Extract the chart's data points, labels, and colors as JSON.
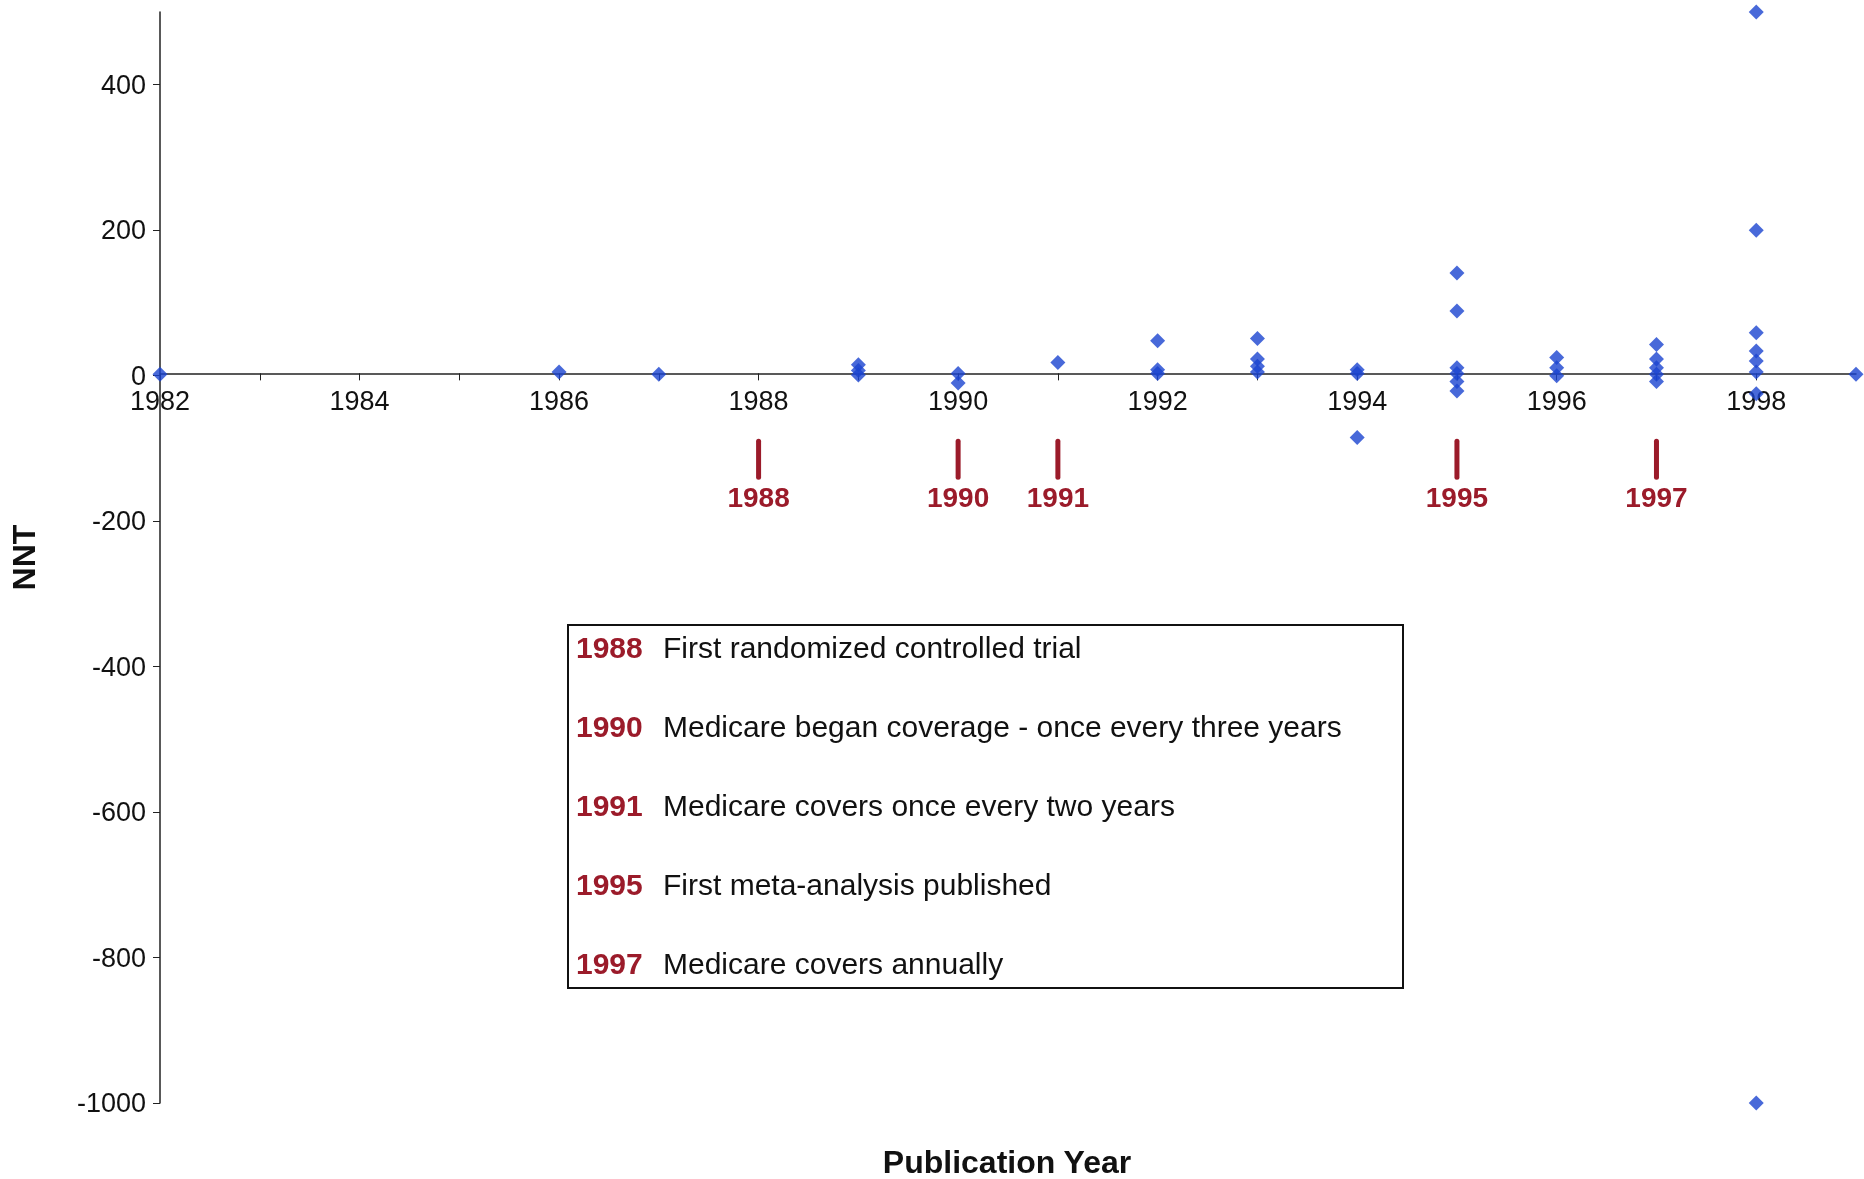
{
  "chart_data": {
    "type": "scatter",
    "xlabel": "Publication Year",
    "ylabel": "NNT",
    "x": [
      1982,
      1986,
      1987,
      1989,
      1989,
      1989,
      1990,
      1990,
      1991,
      1992,
      1992,
      1992,
      1993,
      1993,
      1993,
      1993,
      1994,
      1994,
      1994,
      1995,
      1995,
      1995,
      1995,
      1995,
      1995,
      1996,
      1996,
      1996,
      1997,
      1997,
      1997,
      1997,
      1997,
      1998,
      1998,
      1998,
      1998,
      1998,
      1998,
      1998,
      1998,
      1999
    ],
    "series": [
      {
        "color": "#1a44d0",
        "values": [
          2,
          5,
          2,
          15,
          7,
          1,
          3,
          -10,
          18,
          48,
          8,
          3,
          51,
          23,
          13,
          5,
          8,
          3,
          -85,
          141,
          89,
          11,
          3,
          -8,
          -21,
          25,
          11,
          0,
          43,
          23,
          11,
          2,
          -8,
          500,
          200,
          59,
          34,
          20,
          5,
          -25,
          -1000,
          2
        ]
      }
    ],
    "marker": "diamond",
    "xlim": [
      1982,
      1999
    ],
    "xticks": [
      1982,
      {
        "value": 1983,
        "label": null
      },
      1984,
      {
        "value": 1985,
        "label": null
      },
      1986,
      {
        "value": 1987,
        "label": null
      },
      1988,
      {
        "value": 1989,
        "label": null
      },
      1990,
      {
        "value": 1991,
        "label": null
      },
      1992,
      {
        "value": 1993,
        "label": null
      },
      1994,
      {
        "value": 1995,
        "label": null
      },
      1996,
      {
        "value": 1997,
        "label": null
      },
      1998
    ],
    "ylim": [
      -1000,
      500
    ],
    "yticks": [
      -1000,
      -800,
      -600,
      -400,
      -200,
      0,
      200,
      400
    ],
    "ref_lines": [
      {
        "axis": "x",
        "value": 1988,
        "label": "1988",
        "color": "#9b1b2a"
      },
      {
        "axis": "x",
        "value": 1990,
        "label": "1990",
        "color": "#9b1b2a"
      },
      {
        "axis": "x",
        "value": 1991,
        "label": "1991",
        "color": "#9b1b2a"
      },
      {
        "axis": "x",
        "value": 1995,
        "label": "1995",
        "color": "#9b1b2a"
      },
      {
        "axis": "x",
        "value": 1997,
        "label": "1997",
        "color": "#9b1b2a"
      }
    ],
    "annotations": [
      "1988 First randomized controlled trial",
      "1990 Medicare began coverage - once every three years",
      "1991 Medicare covers once every two years",
      "1995 First meta-analysis published",
      "1997 Medicare covers annually"
    ]
  }
}
